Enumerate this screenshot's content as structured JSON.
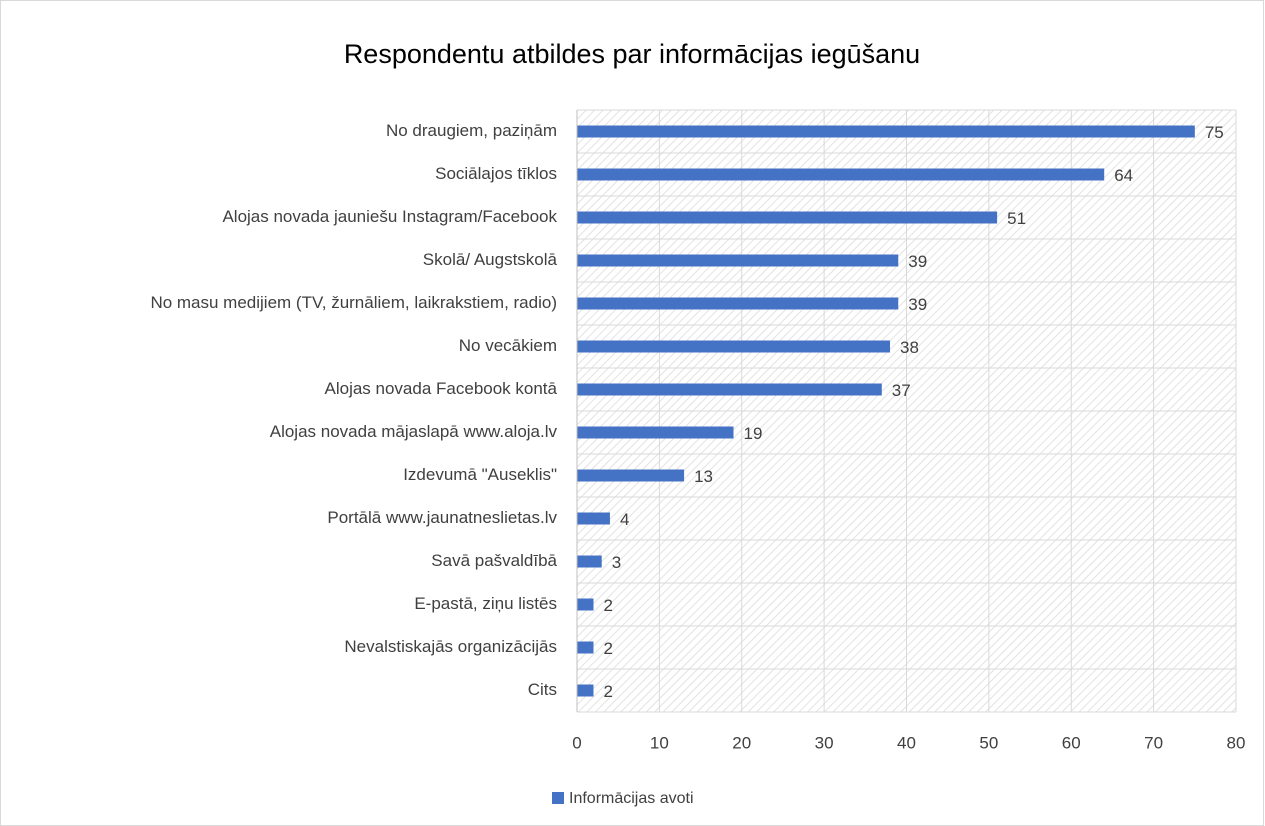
{
  "chart_data": {
    "type": "bar",
    "orientation": "horizontal",
    "title": "Respondentu atbildes par informācijas iegūšanu",
    "categories": [
      "No draugiem, paziņām",
      "Sociālajos tīklos",
      "Alojas novada jauniešu Instagram/Facebook",
      "Skolā/ Augstskolā",
      "No masu medijiem (TV, žurnāliem, laikrakstiem, radio)",
      "No vecākiem",
      "Alojas novada Facebook kontā",
      "Alojas novada mājaslapā www.aloja.lv",
      "Izdevumā \"Auseklis\"",
      "Portālā www.jaunatneslietas.lv",
      "Savā pašvaldībā",
      "E-pastā, ziņu listēs",
      "Nevalstiskajās organizācijās",
      "Cits"
    ],
    "series": [
      {
        "name": "Informācijas avoti",
        "color": "#4472c4",
        "values": [
          75,
          64,
          51,
          39,
          39,
          38,
          37,
          19,
          13,
          4,
          3,
          2,
          2,
          2
        ]
      }
    ],
    "xlim": [
      0,
      80
    ],
    "xticks": [
      0,
      10,
      20,
      30,
      40,
      50,
      60,
      70,
      80
    ],
    "grid": true,
    "legend": "bottom"
  }
}
